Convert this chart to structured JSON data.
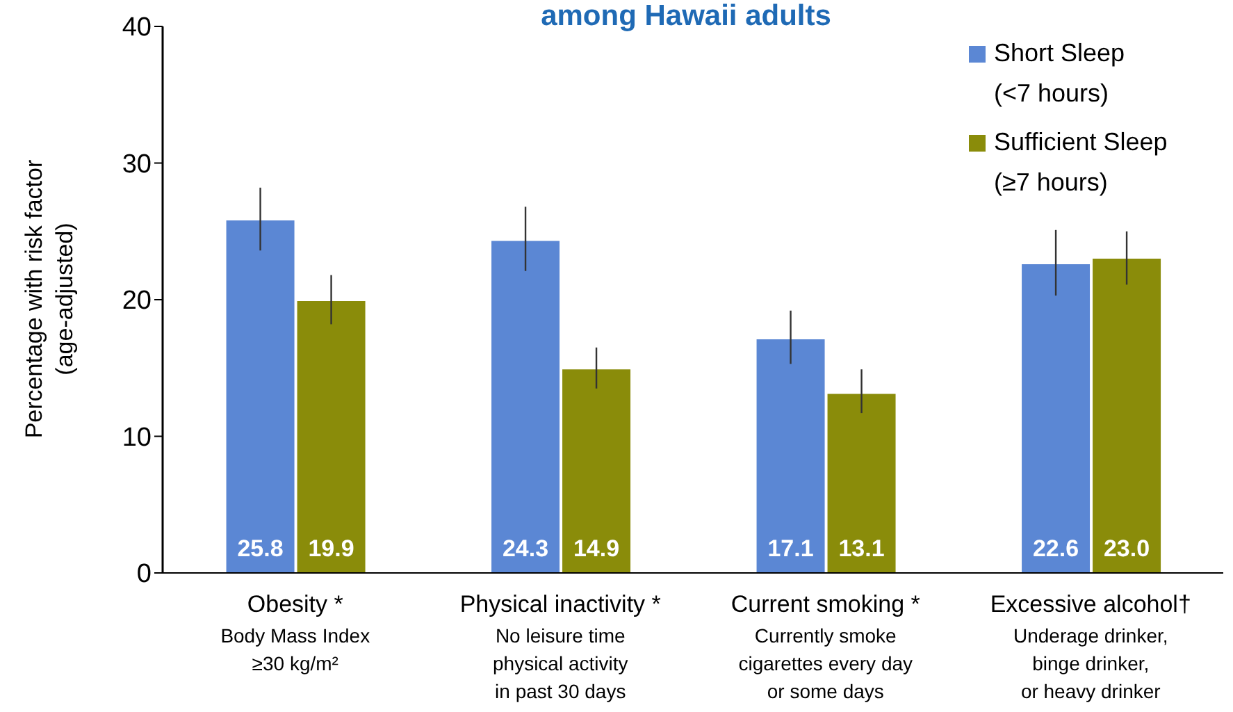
{
  "chart_data": {
    "type": "bar",
    "title": "among Hawaii adults",
    "ylabel": "Percentage with risk factor\n(age-adjusted)",
    "categories": [
      "Obesity *\nBody Mass Index\n≥30 kg/m²",
      "Physical inactivity *\nNo leisure time\nphysical activity\nin past 30 days",
      "Current smoking *\nCurrently smoke\ncigarettes every day\nor some days",
      "Excessive alcohol†\nUnderage drinker,\nbinge drinker,\nor heavy drinker"
    ],
    "series": [
      {
        "name": "Short Sleep (<7 hours)",
        "color": "#5b87d4",
        "values": [
          25.8,
          24.3,
          17.1,
          22.6
        ],
        "value_labels": [
          "25.8",
          "24.3",
          "17.1",
          "22.6"
        ],
        "errors": [
          [
            23.6,
            28.2
          ],
          [
            22.1,
            26.8
          ],
          [
            15.3,
            19.2
          ],
          [
            20.3,
            25.1
          ]
        ]
      },
      {
        "name": "Sufficient Sleep (≥7 hours)",
        "color": "#8a8c0a",
        "values": [
          19.9,
          14.9,
          13.1,
          23.0
        ],
        "value_labels": [
          "19.9",
          "14.9",
          "13.1",
          "23.0"
        ],
        "errors": [
          [
            18.2,
            21.8
          ],
          [
            13.5,
            16.5
          ],
          [
            11.7,
            14.9
          ],
          [
            21.1,
            25.0
          ]
        ]
      }
    ],
    "ylim": [
      0,
      40
    ],
    "yticks": [
      0,
      10,
      20,
      30,
      40
    ],
    "grid": false,
    "legend": "top right"
  }
}
